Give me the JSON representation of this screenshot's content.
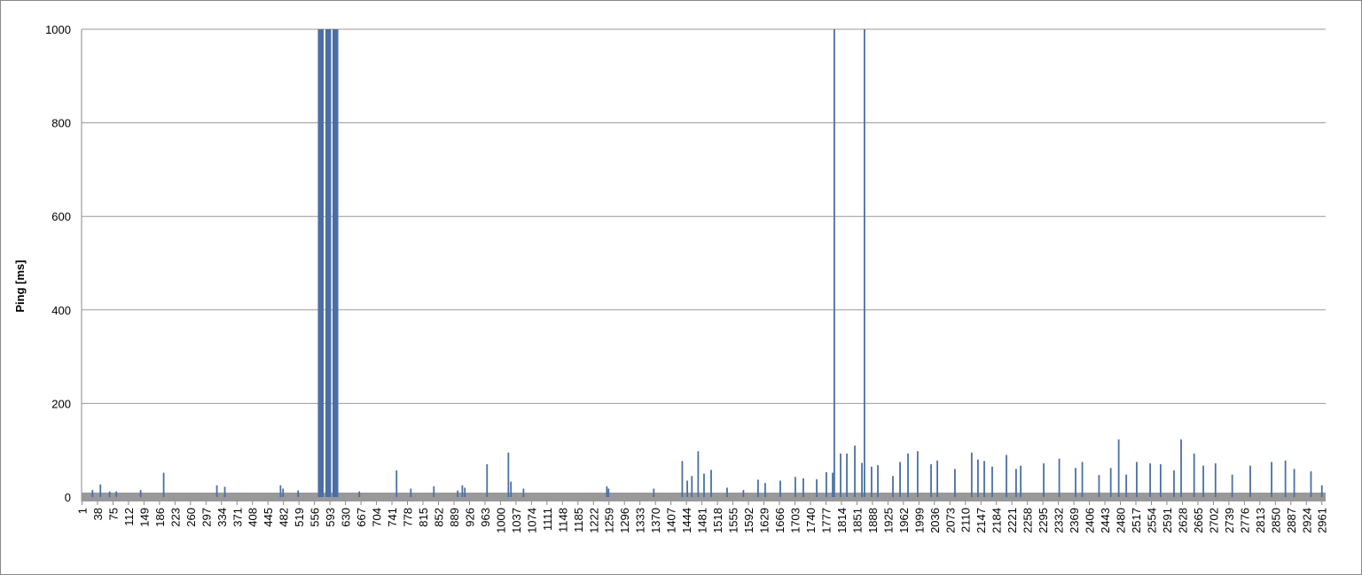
{
  "chart_data": {
    "type": "bar",
    "y_label": "Ping [ms]",
    "color": "#4a6fa5",
    "grid": true,
    "xlim": [
      0,
      2970
    ],
    "ylim": [
      0,
      1000
    ],
    "yticks": [
      0,
      200,
      400,
      600,
      800,
      1000
    ],
    "xticks": [
      1,
      38,
      75,
      112,
      149,
      186,
      223,
      260,
      297,
      334,
      371,
      408,
      445,
      482,
      519,
      556,
      593,
      630,
      667,
      704,
      741,
      778,
      815,
      852,
      889,
      926,
      963,
      1000,
      1037,
      1074,
      1111,
      1148,
      1185,
      1222,
      1259,
      1296,
      1333,
      1370,
      1407,
      1444,
      1481,
      1518,
      1555,
      1592,
      1629,
      1666,
      1703,
      1740,
      1777,
      1814,
      1851,
      1888,
      1925,
      1962,
      1999,
      2036,
      2073,
      2110,
      2147,
      2184,
      2221,
      2258,
      2295,
      2332,
      2369,
      2406,
      2443,
      2480,
      2517,
      2554,
      2591,
      2628,
      2665,
      2702,
      2739,
      2776,
      2813,
      2850,
      2887,
      2924,
      2961
    ],
    "x": [
      26,
      45,
      67,
      83,
      141,
      196,
      323,
      342,
      475,
      481,
      517,
      566,
      568,
      570,
      572,
      574,
      576,
      584,
      586,
      588,
      590,
      592,
      594,
      601,
      603,
      605,
      607,
      609,
      611,
      663,
      752,
      786,
      841,
      898,
      909,
      915,
      968,
      1019,
      1025,
      1055,
      1254,
      1258,
      1366,
      1434,
      1446,
      1457,
      1472,
      1486,
      1503,
      1541,
      1580,
      1615,
      1632,
      1668,
      1704,
      1723,
      1755,
      1778,
      1793,
      1797,
      1812,
      1827,
      1846,
      1863,
      1869,
      1886,
      1901,
      1937,
      1954,
      1973,
      1996,
      2028,
      2043,
      2085,
      2125,
      2140,
      2155,
      2174,
      2208,
      2231,
      2242,
      2297,
      2334,
      2373,
      2389,
      2429,
      2457,
      2476,
      2494,
      2519,
      2551,
      2576,
      2608,
      2625,
      2656,
      2678,
      2707,
      2747,
      2790,
      2841,
      2874,
      2895,
      2935,
      2961
    ],
    "values": [
      15,
      27,
      12,
      12,
      15,
      52,
      25,
      22,
      25,
      18,
      14,
      1000,
      1000,
      1000,
      1000,
      1000,
      1000,
      1000,
      1000,
      1000,
      1000,
      1000,
      1000,
      1000,
      1000,
      1000,
      1000,
      1000,
      1000,
      12,
      57,
      18,
      23,
      14,
      25,
      20,
      70,
      95,
      33,
      18,
      23,
      18,
      18,
      77,
      35,
      45,
      98,
      50,
      58,
      20,
      15,
      37,
      30,
      35,
      43,
      40,
      38,
      53,
      52,
      1000,
      93,
      93,
      110,
      73,
      1000,
      65,
      68,
      45,
      75,
      93,
      98,
      70,
      78,
      60,
      95,
      80,
      77,
      65,
      90,
      60,
      67,
      72,
      82,
      62,
      75,
      47,
      62,
      123,
      48,
      75,
      72,
      70,
      57,
      123,
      93,
      67,
      72,
      48,
      67,
      75,
      78,
      60,
      55,
      25
    ]
  }
}
